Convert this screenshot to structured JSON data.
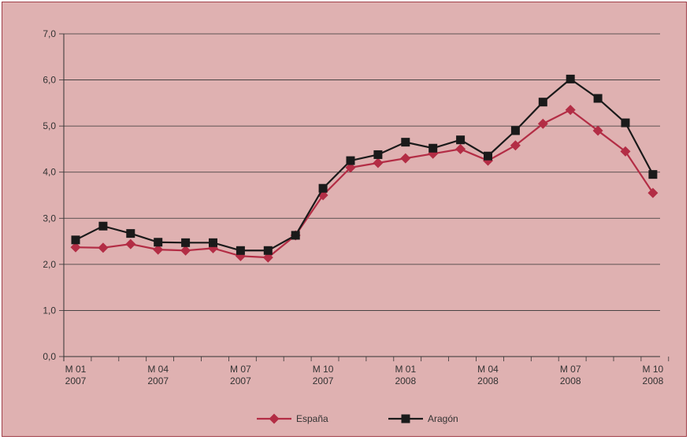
{
  "chart_data": {
    "type": "line",
    "title": "",
    "xlabel": "",
    "ylabel": "",
    "ylim": [
      0,
      7
    ],
    "yticks": [
      "0,0",
      "1,0",
      "2,0",
      "3,0",
      "4,0",
      "5,0",
      "6,0",
      "7,0"
    ],
    "grid": true,
    "legend_position": "bottom-center",
    "x_ticks": [
      {
        "index": 0,
        "line1": "M 01",
        "line2": "2007"
      },
      {
        "index": 3,
        "line1": "M 04",
        "line2": "2007"
      },
      {
        "index": 6,
        "line1": "M 07",
        "line2": "2007"
      },
      {
        "index": 9,
        "line1": "M 10",
        "line2": "2007"
      },
      {
        "index": 12,
        "line1": "M 01",
        "line2": "2008"
      },
      {
        "index": 15,
        "line1": "M 04",
        "line2": "2008"
      },
      {
        "index": 18,
        "line1": "M 07",
        "line2": "2008"
      },
      {
        "index": 21,
        "line1": "M 10",
        "line2": "2008"
      }
    ],
    "series": [
      {
        "name": "España",
        "color": "#b32d45",
        "marker": "diamond",
        "values": [
          2.37,
          2.36,
          2.44,
          2.32,
          2.3,
          2.35,
          2.18,
          2.15,
          2.63,
          3.5,
          4.1,
          4.2,
          4.3,
          4.4,
          4.5,
          4.25,
          4.58,
          5.05,
          5.35,
          4.9,
          4.45,
          3.55
        ]
      },
      {
        "name": "Aragón",
        "color": "#1a1a1a",
        "marker": "square",
        "values": [
          2.53,
          2.83,
          2.67,
          2.48,
          2.47,
          2.47,
          2.3,
          2.3,
          2.63,
          3.65,
          4.25,
          4.38,
          4.65,
          4.52,
          4.7,
          4.35,
          4.9,
          5.52,
          6.02,
          5.6,
          5.07,
          3.95
        ]
      }
    ]
  },
  "colors": {
    "background": "#dfb1b1",
    "border": "#a0404a",
    "axis": "#333333",
    "grid": "#333333"
  }
}
